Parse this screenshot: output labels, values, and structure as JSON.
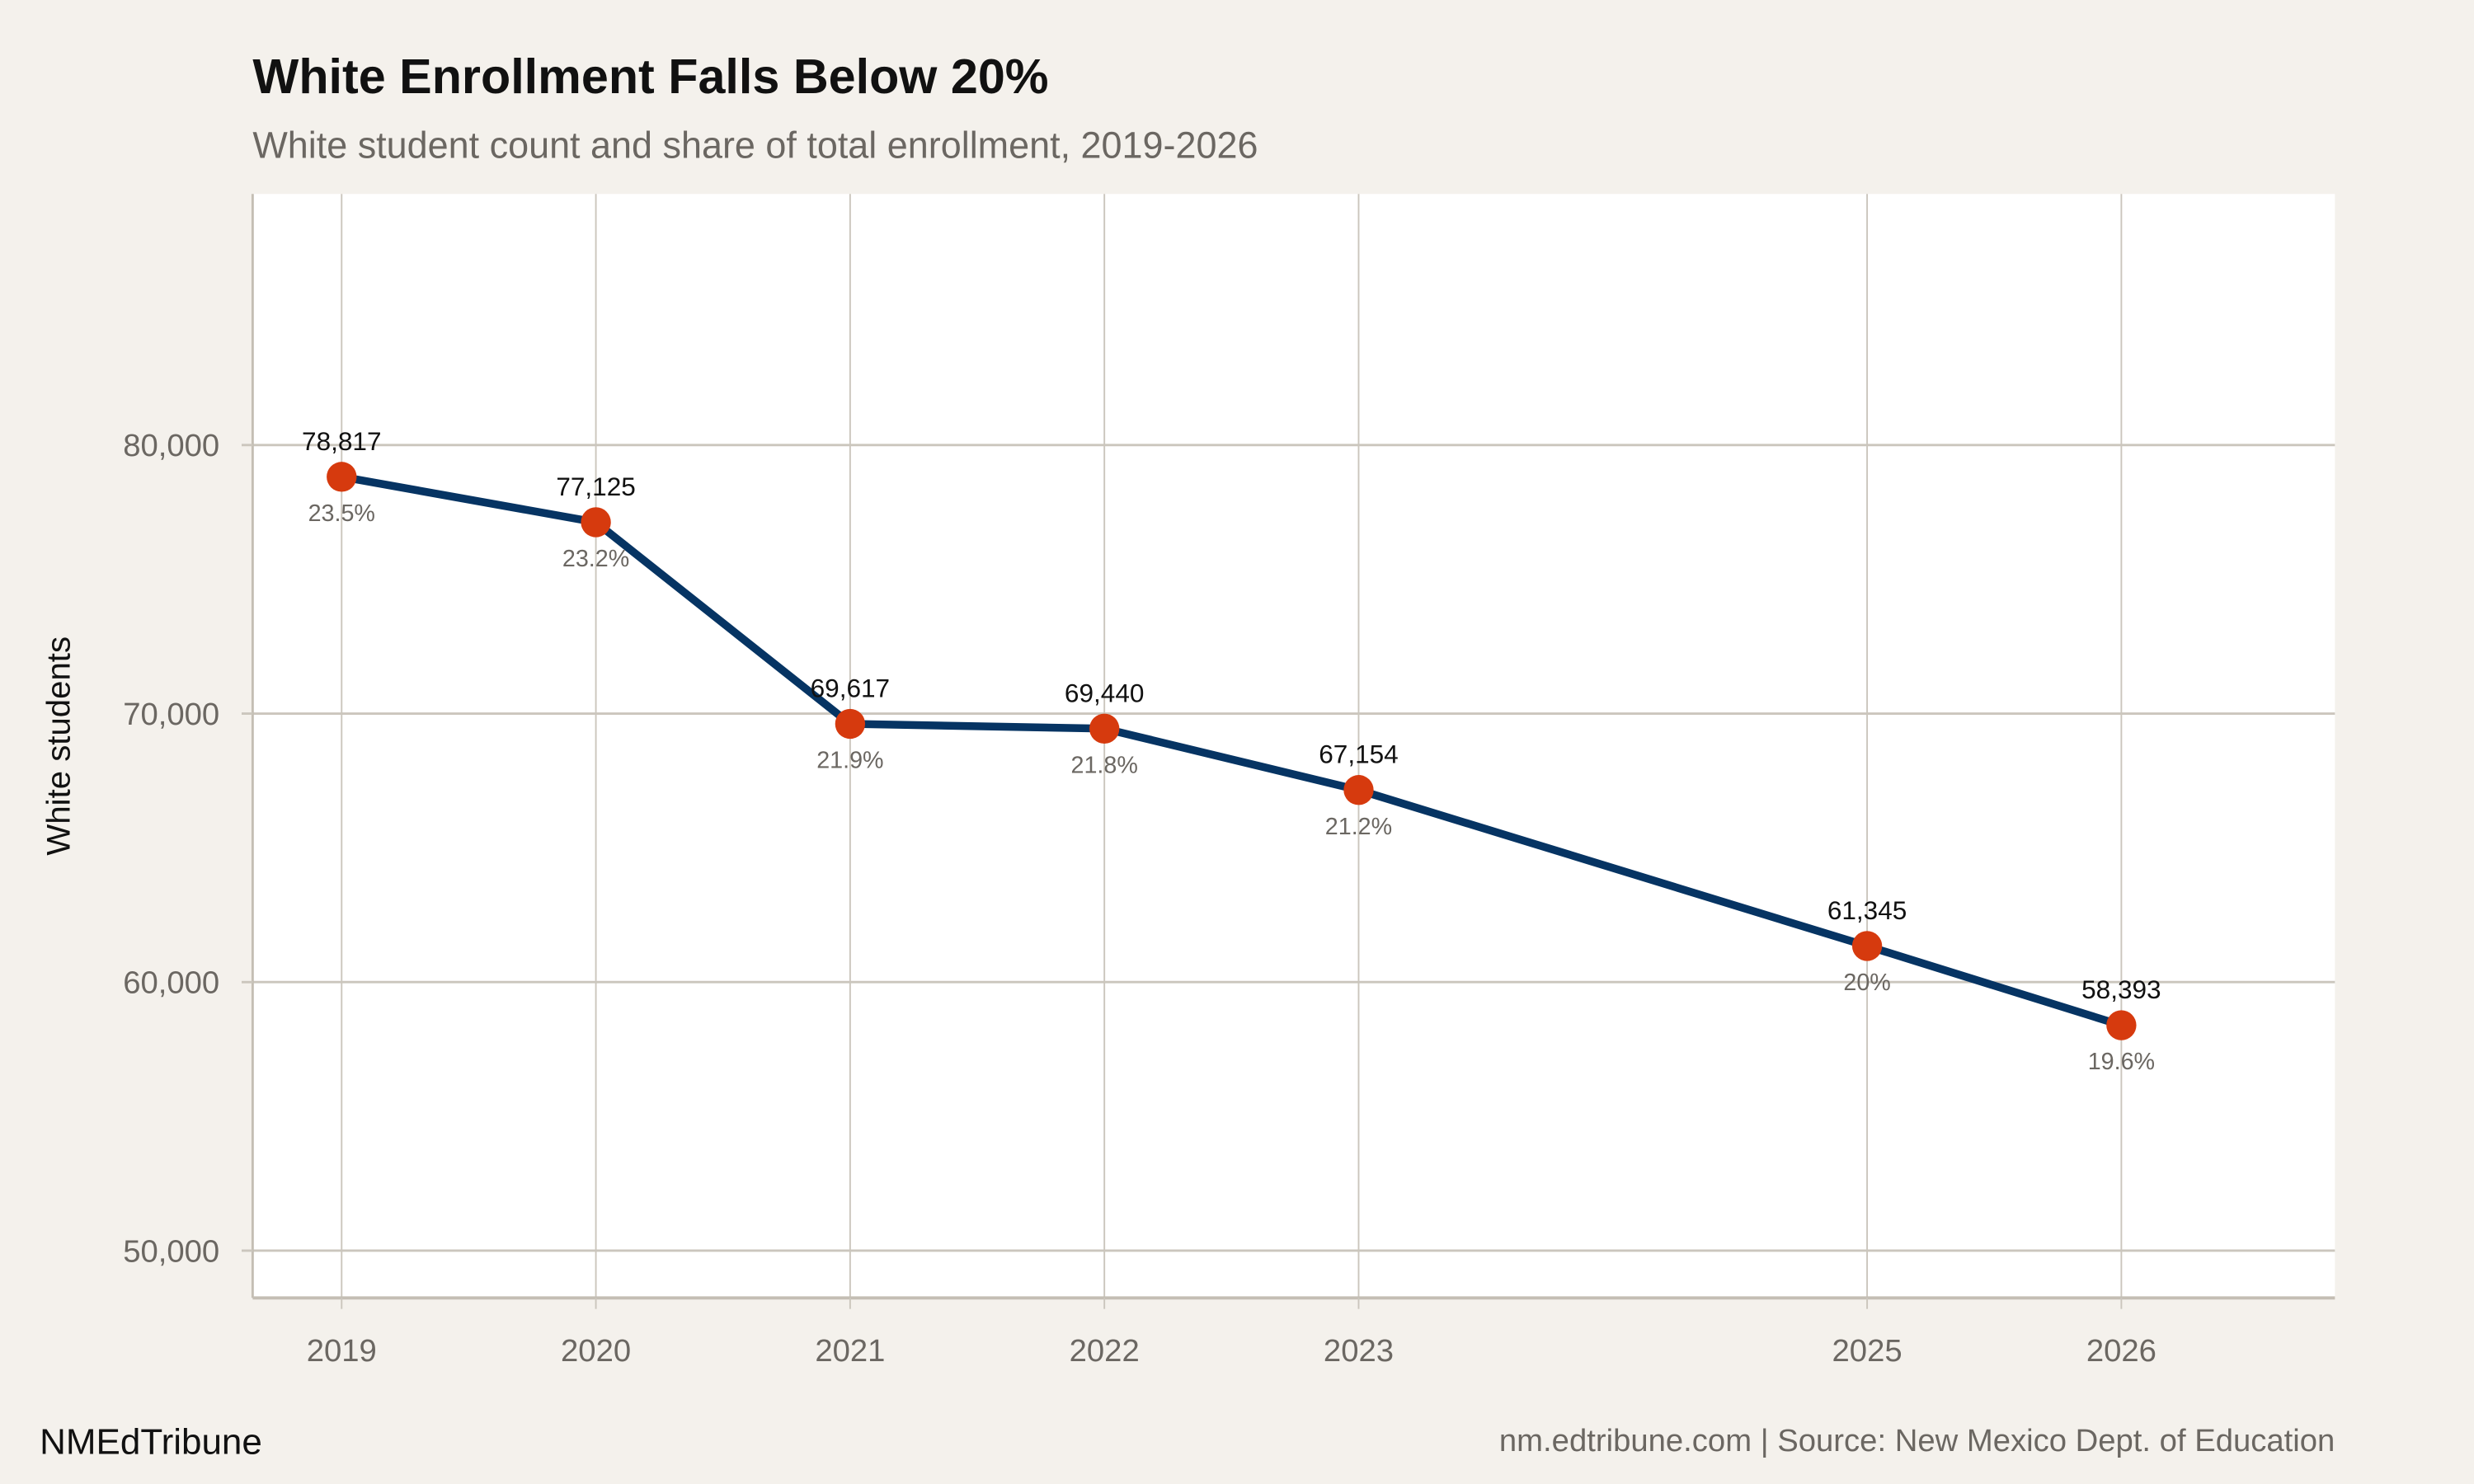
{
  "chart_data": {
    "type": "line",
    "title": "White Enrollment Falls Below 20%",
    "subtitle": "White student count and share of total enrollment, 2019-2026",
    "xlabel": "",
    "ylabel": "White students",
    "x": [
      2019,
      2020,
      2021,
      2022,
      2023,
      2025,
      2026
    ],
    "x_tick_labels": [
      "2019",
      "2020",
      "2021",
      "2022",
      "2023",
      "2025",
      "2026"
    ],
    "values": [
      78817,
      77125,
      69617,
      69440,
      67154,
      61345,
      58393
    ],
    "value_labels": [
      "78,817",
      "77,125",
      "69,617",
      "69,440",
      "67,154",
      "61,345",
      "58,393"
    ],
    "share_labels": [
      "23.5%",
      "23.2%",
      "21.9%",
      "21.8%",
      "21.2%",
      "20%",
      "19.6%"
    ],
    "y_ticks": [
      50000,
      60000,
      70000,
      80000
    ],
    "y_tick_labels": [
      "50,000",
      "60,000",
      "70,000",
      "80,000"
    ],
    "xlim": [
      2018.65,
      2026.84
    ],
    "ylim": [
      48240,
      89350
    ],
    "grid": true,
    "legend": "none",
    "colors": {
      "line": "#063463",
      "point": "#d63a0e",
      "background": "#f4f1ec",
      "panel": "#ffffff",
      "grid": "#cbc6bd"
    }
  },
  "footer": {
    "brand": "NMEdTribune",
    "caption": "nm.edtribune.com | Source: New Mexico Dept. of Education"
  }
}
